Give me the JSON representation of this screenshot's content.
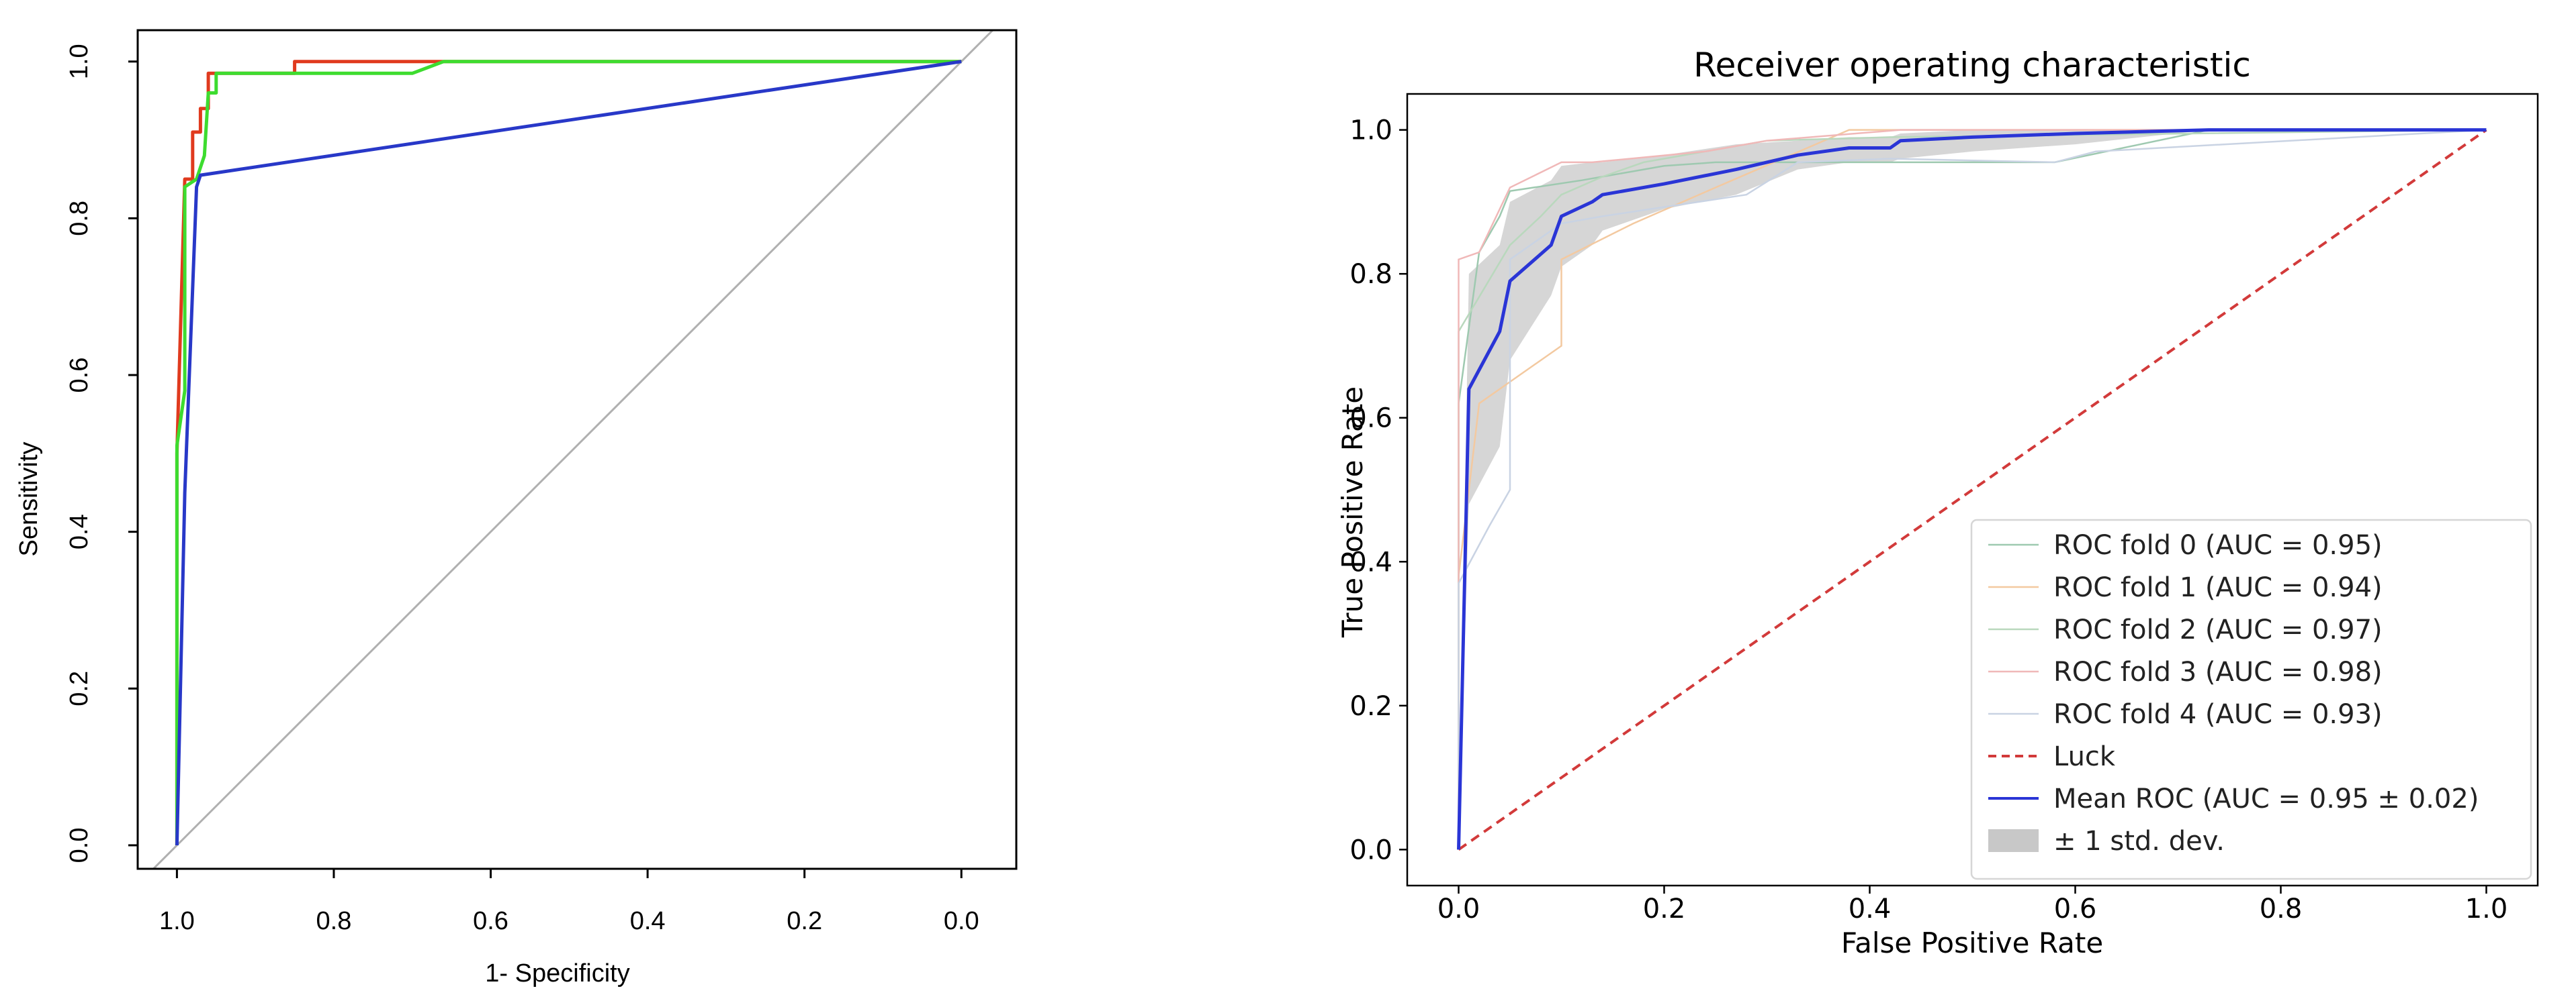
{
  "chart_data": [
    {
      "type": "line",
      "title": "",
      "xlabel": "1- Specificity",
      "ylabel": "Sensitivity",
      "xlim": [
        1.05,
        -0.07
      ],
      "ylim": [
        -0.03,
        1.04
      ],
      "x_reversed": true,
      "xticks": [
        1.0,
        0.8,
        0.6,
        0.4,
        0.2,
        0.0
      ],
      "xtick_labels": [
        "1.0",
        "0.8",
        "0.6",
        "0.4",
        "0.2",
        "0.0"
      ],
      "yticks": [
        0.0,
        0.2,
        0.4,
        0.6,
        0.8,
        1.0
      ],
      "ytick_labels": [
        "0.0",
        "0.2",
        "0.4",
        "0.6",
        "0.8",
        "1.0"
      ],
      "grid": false,
      "reference_line": {
        "color": "#b0b0b0",
        "points": [
          [
            1.06,
            -0.06
          ],
          [
            -0.04,
            1.04
          ]
        ]
      },
      "series": [
        {
          "name": "red",
          "color": "#e03a1e",
          "x": [
            1.0,
            1.0,
            0.99,
            0.98,
            0.98,
            0.97,
            0.97,
            0.96,
            0.96,
            0.85,
            0.85,
            0.0
          ],
          "y": [
            0.0,
            0.5,
            0.85,
            0.85,
            0.91,
            0.91,
            0.94,
            0.94,
            0.985,
            0.985,
            1.0,
            1.0
          ]
        },
        {
          "name": "green",
          "color": "#3ddc2f",
          "x": [
            1.0,
            1.0,
            0.99,
            0.99,
            0.975,
            0.965,
            0.96,
            0.95,
            0.95,
            0.72,
            0.7,
            0.66,
            0.0
          ],
          "y": [
            0.0,
            0.51,
            0.58,
            0.84,
            0.85,
            0.88,
            0.96,
            0.96,
            0.985,
            0.985,
            0.985,
            1.0,
            1.0
          ]
        },
        {
          "name": "blue",
          "color": "#2838c8",
          "x": [
            1.0,
            0.99,
            0.975,
            0.97,
            0.0
          ],
          "y": [
            0.0,
            0.45,
            0.84,
            0.855,
            1.0
          ]
        }
      ]
    },
    {
      "type": "line",
      "title": "Receiver operating characteristic",
      "xlabel": "False Positive Rate",
      "ylabel": "True Positive Rate",
      "xlim": [
        -0.05,
        1.05
      ],
      "ylim": [
        -0.05,
        1.05
      ],
      "xticks": [
        0.0,
        0.2,
        0.4,
        0.6,
        0.8,
        1.0
      ],
      "xtick_labels": [
        "0.0",
        "0.2",
        "0.4",
        "0.6",
        "0.8",
        "1.0"
      ],
      "yticks": [
        0.0,
        0.2,
        0.4,
        0.6,
        0.8,
        1.0
      ],
      "ytick_labels": [
        "0.0",
        "0.2",
        "0.4",
        "0.6",
        "0.8",
        "1.0"
      ],
      "grid": false,
      "legend_position": "lower-right",
      "folds": [
        {
          "name": "ROC fold 0 (AUC = 0.95)",
          "color": "#9ec9b0",
          "x": [
            0,
            0,
            0.02,
            0.04,
            0.05,
            0.12,
            0.2,
            0.25,
            0.42,
            0.58,
            0.73,
            1.0
          ],
          "y": [
            0,
            0.62,
            0.83,
            0.88,
            0.915,
            0.93,
            0.95,
            0.955,
            0.955,
            0.955,
            1.0,
            1.0
          ]
        },
        {
          "name": "ROC fold 1 (AUC = 0.94)",
          "color": "#f3c9a0",
          "x": [
            0,
            0,
            0.02,
            0.05,
            0.1,
            0.1,
            0.17,
            0.25,
            0.38,
            0.55,
            1.0
          ],
          "y": [
            0,
            0.38,
            0.62,
            0.65,
            0.7,
            0.82,
            0.87,
            0.92,
            1.0,
            1.0,
            1.0
          ]
        },
        {
          "name": "ROC fold 2 (AUC = 0.97)",
          "color": "#b9d8bd",
          "x": [
            0,
            0,
            0.05,
            0.08,
            0.1,
            0.14,
            0.18,
            0.3,
            0.42,
            1.0
          ],
          "y": [
            0,
            0.72,
            0.84,
            0.88,
            0.91,
            0.935,
            0.955,
            0.985,
            0.99,
            1.0
          ]
        },
        {
          "name": "ROC fold 3 (AUC = 0.98)",
          "color": "#f0b8b8",
          "x": [
            0,
            0,
            0.02,
            0.05,
            0.1,
            0.13,
            0.24,
            0.3,
            0.43,
            1.0
          ],
          "y": [
            0,
            0.82,
            0.83,
            0.92,
            0.955,
            0.955,
            0.97,
            0.985,
            1.0,
            1.0
          ]
        },
        {
          "name": "ROC fold 4 (AUC = 0.93)",
          "color": "#c9d3e3",
          "x": [
            0,
            0,
            0.03,
            0.05,
            0.05,
            0.1,
            0.14,
            0.28,
            0.33,
            0.42,
            0.58,
            0.62,
            1.0
          ],
          "y": [
            0,
            0.37,
            0.45,
            0.5,
            0.82,
            0.87,
            0.88,
            0.91,
            0.955,
            0.96,
            0.955,
            0.97,
            1.0
          ]
        }
      ],
      "luck": {
        "name": "Luck",
        "color": "#d23a3a",
        "x": [
          0,
          1
        ],
        "y": [
          0,
          1
        ]
      },
      "mean": {
        "name": "Mean ROC (AUC = 0.95 ± 0.02)",
        "color": "#2a35d6",
        "x": [
          0.0,
          0.01,
          0.04,
          0.05,
          0.09,
          0.1,
          0.13,
          0.14,
          0.2,
          0.27,
          0.33,
          0.38,
          0.42,
          0.43,
          0.5,
          0.6,
          0.73,
          1.0
        ],
        "y": [
          0.0,
          0.64,
          0.72,
          0.79,
          0.84,
          0.88,
          0.9,
          0.91,
          0.925,
          0.945,
          0.965,
          0.975,
          0.975,
          0.985,
          0.99,
          0.995,
          1.0,
          1.0
        ]
      },
      "std_band": {
        "name": "± 1 std. dev.",
        "color": "#c8c8c8",
        "x": [
          0.0,
          0.01,
          0.04,
          0.05,
          0.09,
          0.1,
          0.13,
          0.14,
          0.2,
          0.27,
          0.33,
          0.38,
          0.42,
          0.43,
          0.5,
          0.6,
          0.73,
          1.0
        ],
        "upper": [
          0.0,
          0.8,
          0.84,
          0.9,
          0.93,
          0.95,
          0.955,
          0.955,
          0.965,
          0.98,
          0.985,
          0.99,
          0.99,
          0.995,
          1.0,
          1.0,
          1.0,
          1.0
        ],
        "lower": [
          0.0,
          0.48,
          0.56,
          0.68,
          0.77,
          0.81,
          0.84,
          0.86,
          0.89,
          0.91,
          0.945,
          0.955,
          0.955,
          0.96,
          0.97,
          0.98,
          1.0,
          1.0
        ]
      }
    }
  ]
}
